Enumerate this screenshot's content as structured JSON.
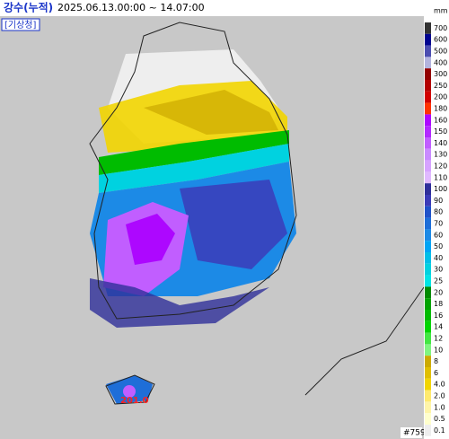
{
  "header": {
    "title": "강수(누적)",
    "period": "2025.06.13.00:00 ~ 14.07:00",
    "source": "[기상청]"
  },
  "legend": {
    "unit": "mm",
    "items": [
      {
        "label": "700",
        "color": "#333333"
      },
      {
        "label": "600",
        "color": "#000390"
      },
      {
        "label": "500",
        "color": "#4c4eb1"
      },
      {
        "label": "400",
        "color": "#b3b4de"
      },
      {
        "label": "300",
        "color": "#930000"
      },
      {
        "label": "250",
        "color": "#b40000"
      },
      {
        "label": "200",
        "color": "#d20000"
      },
      {
        "label": "180",
        "color": "#ff3300"
      },
      {
        "label": "160",
        "color": "#ad07ff"
      },
      {
        "label": "150",
        "color": "#b329ff"
      },
      {
        "label": "140",
        "color": "#c15eff"
      },
      {
        "label": "130",
        "color": "#c98bff"
      },
      {
        "label": "120",
        "color": "#d6a3ff"
      },
      {
        "label": "110",
        "color": "#e0b9ff"
      },
      {
        "label": "100",
        "color": "#2f2f9a"
      },
      {
        "label": "90",
        "color": "#3b3bb8"
      },
      {
        "label": "80",
        "color": "#1f52c9"
      },
      {
        "label": "70",
        "color": "#1e6ed8"
      },
      {
        "label": "60",
        "color": "#1c8ae6"
      },
      {
        "label": "50",
        "color": "#00a5f5"
      },
      {
        "label": "40",
        "color": "#00bfe8"
      },
      {
        "label": "30",
        "color": "#00d2e0"
      },
      {
        "label": "25",
        "color": "#00e5e5"
      },
      {
        "label": "20",
        "color": "#008a00"
      },
      {
        "label": "18",
        "color": "#00a300"
      },
      {
        "label": "16",
        "color": "#00bc00"
      },
      {
        "label": "14",
        "color": "#00d500"
      },
      {
        "label": "12",
        "color": "#43e743"
      },
      {
        "label": "10",
        "color": "#80f580"
      },
      {
        "label": "8",
        "color": "#ccaa00"
      },
      {
        "label": "6",
        "color": "#e0bf00"
      },
      {
        "label": "4.0",
        "color": "#f2d500"
      },
      {
        "label": "2.0",
        "color": "#ffea6e"
      },
      {
        "label": "1.0",
        "color": "#fff5a8"
      },
      {
        "label": "0.5",
        "color": "#ffffcc"
      },
      {
        "label": "0.1",
        "color": "#eeeeee"
      }
    ]
  },
  "map": {
    "max_label": "201.0",
    "frame_id": "#759"
  }
}
